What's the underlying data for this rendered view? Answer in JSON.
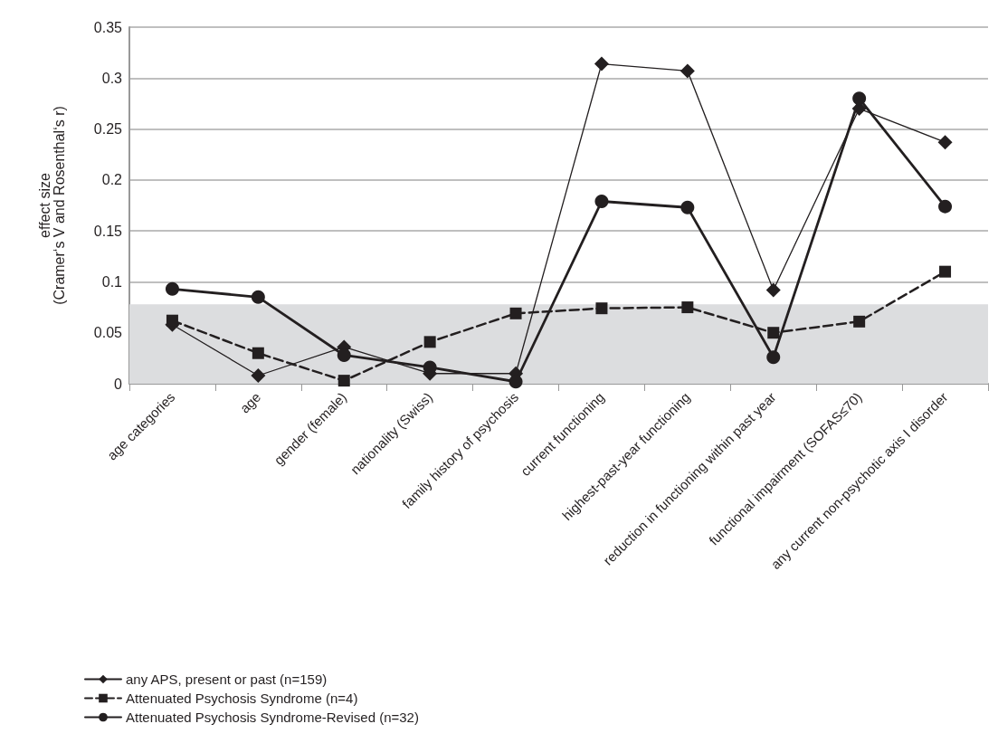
{
  "chart_data": {
    "type": "line",
    "ylabel": "effect size\n(Cramer‘s V and Rosenthal‘s r)",
    "categories": [
      "age categories",
      "age",
      "gender (female)",
      "nationality (Swiss)",
      "family history of psychosis",
      "current functioning",
      "highest-past-year functioning",
      "reduction in functioning within past year",
      "functional impairment (SOFAS≤70)",
      "any current non-psychotic axis I disorder"
    ],
    "series": [
      {
        "name": "any APS, present or past (n=159)",
        "color": "#231f20",
        "marker": "diamond",
        "line_style": "solid",
        "values": [
          0.058,
          0.008,
          0.036,
          0.01,
          0.01,
          0.314,
          0.307,
          0.092,
          0.27,
          0.237
        ]
      },
      {
        "name": "Attenuated Psychosis Syndrome (n=4)",
        "color": "#231f20",
        "marker": "square",
        "line_style": "dashed",
        "values": [
          0.062,
          0.03,
          0.003,
          0.041,
          0.069,
          0.074,
          0.075,
          0.05,
          0.061,
          0.11
        ]
      },
      {
        "name": "Attenuated Psychosis Syndrome-Revised (n=32)",
        "color": "#231f20",
        "marker": "circle",
        "line_style": "solid",
        "values": [
          0.093,
          0.085,
          0.028,
          0.016,
          0.002,
          0.179,
          0.173,
          0.026,
          0.28,
          0.174
        ]
      }
    ],
    "ylim": [
      0,
      0.35
    ],
    "yticks": [
      0,
      0.05,
      0.1,
      0.15,
      0.2,
      0.25,
      0.3,
      0.35
    ],
    "bands": [
      {
        "axis": "y",
        "from": 0,
        "to": 0.078,
        "color": "#dcdddf"
      }
    ],
    "grid": "y",
    "legend": "bottom left"
  }
}
